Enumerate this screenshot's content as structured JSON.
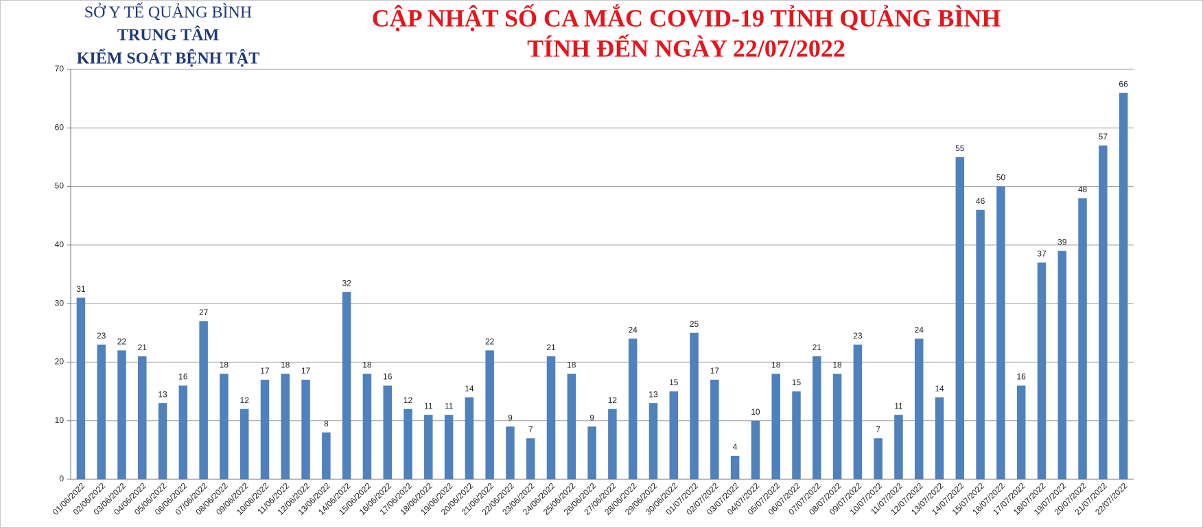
{
  "header": {
    "lines": [
      "SỞ Y TẾ QUẢNG BÌNH",
      "TRUNG TÂM",
      "KIỂM SOÁT BỆNH TẬT"
    ]
  },
  "chart_data": {
    "type": "bar",
    "title": [
      "CẬP NHẬT SỐ CA MẮC COVID-19 TỈNH QUẢNG BÌNH",
      "TÍNH ĐẾN NGÀY 22/07/2022"
    ],
    "categories": [
      "01/06/2022",
      "02/06/2022",
      "03/06/2022",
      "04/06/2022",
      "05/06/2022",
      "06/06/2022",
      "07/06/2022",
      "08/06/2022",
      "09/06/2022",
      "10/06/2022",
      "11/06/2022",
      "12/06/2022",
      "13/06/2022",
      "14/06/2022",
      "15/06/2022",
      "16/06/2022",
      "17/06/2022",
      "18/06/2022",
      "19/06/2022",
      "20/06/2022",
      "21/06/2022",
      "22/06/2022",
      "23/06/2022",
      "24/06/2022",
      "25/06/2022",
      "26/06/2022",
      "27/06/2022",
      "28/06/2022",
      "29/06/2022",
      "30/06/2022",
      "01/07/2022",
      "02/07/2022",
      "03/07/2022",
      "04/07/2022",
      "05/07/2022",
      "06/07/2022",
      "07/07/2022",
      "08/07/2022",
      "09/07/2022",
      "10/07/2022",
      "11/07/2022",
      "12/07/2022",
      "13/07/2022",
      "14/07/2022",
      "15/07/2022",
      "16/07/2022",
      "17/07/2022",
      "18/07/2022",
      "19/07/2022",
      "20/07/2022",
      "21/07/2022",
      "22/07/2022"
    ],
    "values": [
      31,
      23,
      22,
      21,
      13,
      16,
      27,
      18,
      12,
      17,
      18,
      17,
      8,
      32,
      18,
      16,
      12,
      11,
      11,
      14,
      22,
      9,
      7,
      21,
      18,
      9,
      12,
      24,
      13,
      15,
      25,
      17,
      4,
      10,
      18,
      15,
      21,
      18,
      23,
      7,
      11,
      24,
      14,
      55,
      46,
      50,
      16,
      37,
      39,
      48,
      57,
      66
    ],
    "color": "#4f81bd",
    "ylim": [
      0,
      70
    ],
    "yticks": [
      0,
      10,
      20,
      30,
      40,
      50,
      60,
      70
    ],
    "grid": true
  }
}
